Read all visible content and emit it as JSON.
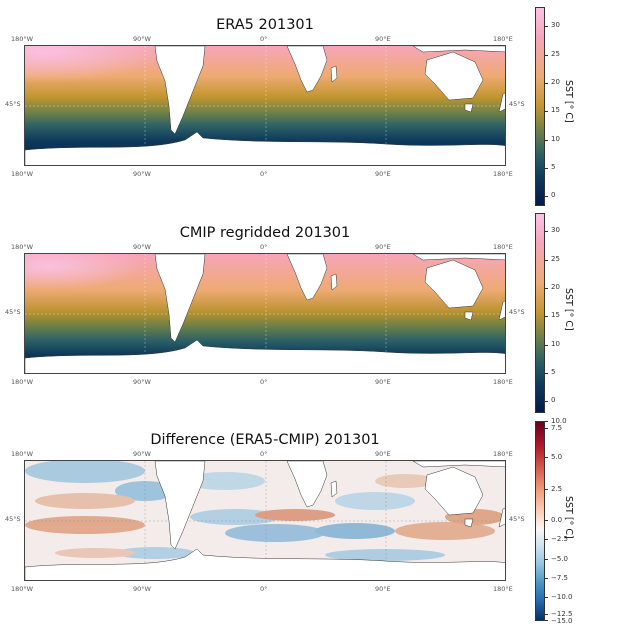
{
  "chart_data": [
    {
      "type": "heatmap",
      "title": "ERA5 201301",
      "x_ticks": [
        "180°W",
        "90°W",
        "0°",
        "90°E",
        "180°E"
      ],
      "y_ticks": [
        "45°S"
      ],
      "colorbar": {
        "label": "SST [° C]",
        "ticks": [
          0,
          5,
          10,
          15,
          20,
          25,
          30
        ],
        "range": [
          -2,
          33
        ],
        "colormap": "batlow-like"
      }
    },
    {
      "type": "heatmap",
      "title": "CMIP regridded 201301",
      "x_ticks": [
        "180°W",
        "90°W",
        "0°",
        "90°E",
        "180°E"
      ],
      "y_ticks": [
        "45°S"
      ],
      "colorbar": {
        "label": "SST [° C]",
        "ticks": [
          0,
          5,
          10,
          15,
          20,
          25,
          30
        ],
        "range": [
          -2,
          33
        ],
        "colormap": "batlow-like"
      }
    },
    {
      "type": "heatmap",
      "title": "Difference (ERA5-CMIP) 201301",
      "x_ticks": [
        "180°W",
        "90°W",
        "0°",
        "90°E",
        "180°E"
      ],
      "y_ticks": [
        "45°S"
      ],
      "colorbar": {
        "label": "SST [° C]",
        "ticks": [
          "10.0",
          "7.5",
          "5.0",
          "2.5",
          "0.0",
          "−2.5",
          "−5.0",
          "−7.5",
          "−10.0",
          "−12.5",
          "−15.0"
        ],
        "range": [
          -15,
          10
        ],
        "colormap": "RdBu_r"
      }
    }
  ]
}
